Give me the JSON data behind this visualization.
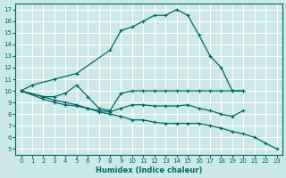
{
  "xlabel": "Humidex (Indice chaleur)",
  "bg_color": "#cce8e8",
  "grid_color": "#ffffff",
  "line_color": "#006666",
  "xlim": [
    -0.5,
    23.5
  ],
  "ylim": [
    4.5,
    17.5
  ],
  "xticks": [
    0,
    1,
    2,
    3,
    4,
    5,
    6,
    7,
    8,
    9,
    10,
    11,
    12,
    13,
    14,
    15,
    16,
    17,
    18,
    19,
    20,
    21,
    22,
    23
  ],
  "yticks": [
    5,
    6,
    7,
    8,
    9,
    10,
    11,
    12,
    13,
    14,
    15,
    16,
    17
  ],
  "series": [
    {
      "x": [
        0,
        1,
        3,
        5,
        8,
        9,
        10,
        11,
        12,
        13,
        14,
        15,
        16,
        17,
        18,
        19,
        20
      ],
      "y": [
        10,
        10.5,
        11.0,
        11.5,
        13.5,
        15.2,
        15.5,
        16.0,
        16.5,
        16.5,
        17.0,
        16.5,
        14.8,
        13.0,
        12.0,
        10.0,
        10.0
      ]
    },
    {
      "x": [
        0,
        2,
        3,
        4,
        5,
        6,
        7,
        8,
        9,
        10,
        11,
        12,
        13,
        14,
        15,
        16,
        17,
        18,
        19,
        20
      ],
      "y": [
        10,
        9.5,
        9.5,
        9.8,
        10.5,
        9.5,
        8.5,
        8.3,
        9.8,
        10.0,
        10.0,
        10.0,
        10.0,
        10.0,
        10.0,
        10.0,
        10.0,
        10.0,
        10.0,
        10.0
      ]
    },
    {
      "x": [
        0,
        2,
        3,
        4,
        5,
        6,
        7,
        8,
        9,
        10,
        11,
        12,
        13,
        14,
        15,
        16,
        17,
        18,
        19,
        20
      ],
      "y": [
        10,
        9.3,
        9.0,
        8.8,
        8.7,
        8.5,
        8.3,
        8.2,
        8.5,
        8.8,
        8.8,
        8.7,
        8.7,
        8.7,
        8.8,
        8.5,
        8.3,
        8.0,
        7.8,
        8.3
      ]
    },
    {
      "x": [
        0,
        2,
        3,
        4,
        5,
        6,
        7,
        8,
        9,
        10,
        11,
        12,
        13,
        14,
        15,
        16,
        17,
        18,
        19,
        20,
        21,
        22,
        23
      ],
      "y": [
        10,
        9.5,
        9.2,
        9.0,
        8.8,
        8.5,
        8.2,
        8.0,
        7.8,
        7.5,
        7.5,
        7.3,
        7.2,
        7.2,
        7.2,
        7.2,
        7.0,
        6.8,
        6.5,
        6.3,
        6.0,
        5.5,
        5.0
      ]
    }
  ]
}
